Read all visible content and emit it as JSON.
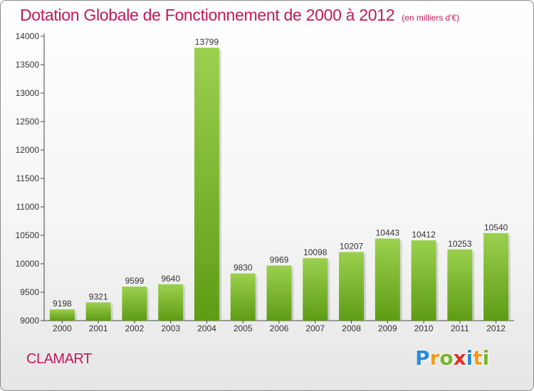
{
  "title": "Dotation Globale de Fonctionnement de 2000 à 2012",
  "unit": "(en milliers d'€)",
  "commune": "CLAMART",
  "logo": {
    "letters": [
      "P",
      "r",
      "o",
      "x",
      "i",
      "t",
      "i"
    ],
    "colors": [
      "#2a8bd6",
      "#f29a1f",
      "#7ab42c",
      "#e0312b",
      "#2a8bd6",
      "#f29a1f",
      "#7ab42c"
    ]
  },
  "colors": {
    "bar_top": "#9bd04e",
    "bar_bottom": "#5e9c14",
    "title": "#c2185b"
  },
  "chart_data": {
    "type": "bar",
    "categories": [
      "2000",
      "2001",
      "2002",
      "2003",
      "2004",
      "2005",
      "2006",
      "2007",
      "2008",
      "2009",
      "2010",
      "2011",
      "2012"
    ],
    "values": [
      9198,
      9321,
      9599,
      9640,
      13799,
      9830,
      9969,
      10098,
      10207,
      10443,
      10412,
      10253,
      10540
    ],
    "ylim": [
      9000,
      14000
    ],
    "yticks": [
      9000,
      9500,
      10000,
      10500,
      11000,
      11500,
      12000,
      12500,
      13000,
      13500,
      14000
    ],
    "grid": false,
    "data_labels": true
  }
}
